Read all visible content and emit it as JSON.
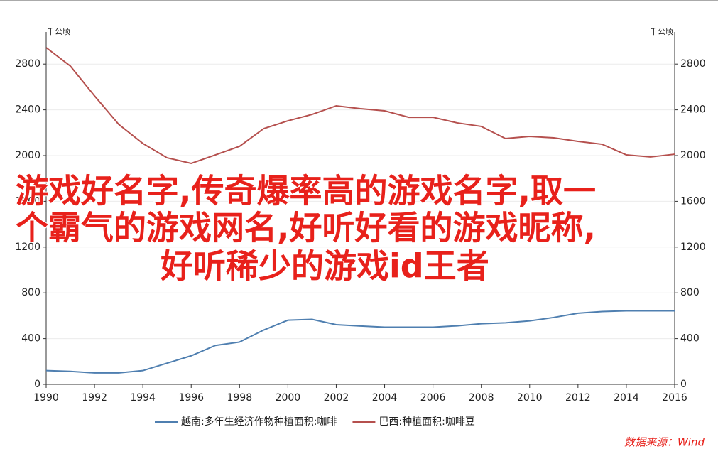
{
  "chart_data": {
    "type": "line",
    "y_label": "千公顷",
    "y2_label": "千公顷",
    "x": [
      1990,
      1991,
      1992,
      1993,
      1994,
      1995,
      1996,
      1997,
      1998,
      1999,
      2000,
      2001,
      2002,
      2003,
      2004,
      2005,
      2006,
      2007,
      2008,
      2009,
      2010,
      2011,
      2012,
      2013,
      2014,
      2015,
      2016
    ],
    "series": [
      {
        "name": "越南:多年生经济作物种植面积:咖啡",
        "color": "#4f7fb0",
        "values": [
          120,
          113,
          100,
          100,
          120,
          185,
          250,
          340,
          370,
          475,
          561,
          568,
          522,
          510,
          500,
          500,
          500,
          512,
          530,
          538,
          555,
          585,
          622,
          637,
          643,
          643,
          643
        ]
      },
      {
        "name": "巴西:种植面积:咖啡豆",
        "color": "#b5504e",
        "axis": "y2",
        "values": [
          2944,
          2783,
          2522,
          2273,
          2106,
          1981,
          1932,
          2006,
          2081,
          2236,
          2304,
          2360,
          2435,
          2410,
          2391,
          2335,
          2335,
          2286,
          2255,
          2149,
          2168,
          2155,
          2124,
          2099,
          2006,
          1988,
          2012
        ]
      }
    ],
    "xlim": [
      1990,
      2016
    ],
    "xticks": [
      1990,
      1992,
      1994,
      1996,
      1998,
      2000,
      2002,
      2004,
      2006,
      2008,
      2010,
      2012,
      2014,
      2016
    ],
    "ylim": [
      0,
      3000
    ],
    "yticks": [
      0,
      400,
      800,
      1200,
      1600,
      2000,
      2400,
      2800
    ],
    "y2lim": [
      0,
      3000
    ],
    "y2ticks": [
      0,
      400,
      800,
      1200,
      1600,
      2000,
      2400,
      2800
    ],
    "grid": true,
    "legend": "bottom",
    "overlay_lines": [
      "游戏好名字,传奇爆率高的游戏名字,取一",
      "个霸气的游戏网名,好听好看的游戏昵称,",
      "好听稀少的游戏id王者"
    ],
    "source": "数据来源：Wind"
  }
}
